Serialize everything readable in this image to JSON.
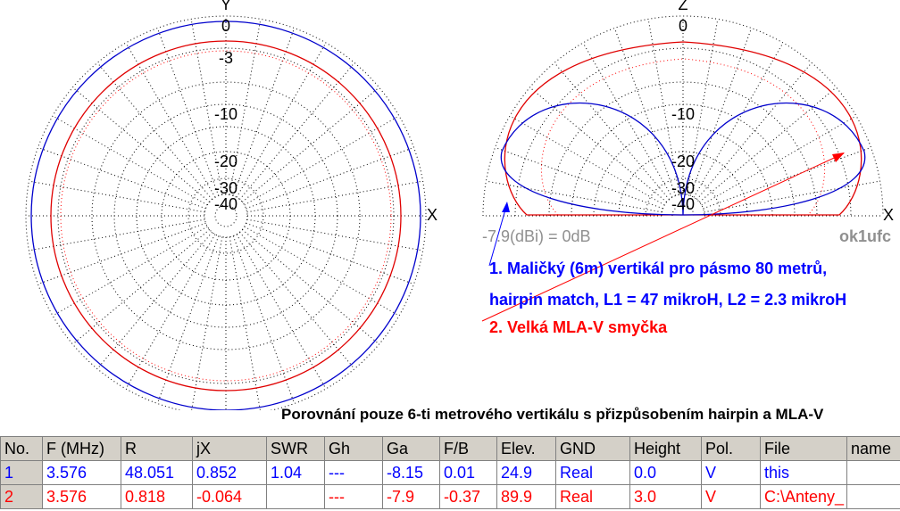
{
  "left_plot": {
    "axis_top": "Y",
    "axis_right": "X",
    "rings": [
      "0",
      "-3",
      "-10",
      "-20",
      "-30",
      "-40"
    ]
  },
  "right_plot": {
    "axis_top": "Z",
    "axis_right": "X",
    "rings": [
      "0",
      "-10",
      "-20",
      "-30",
      "-40"
    ],
    "scale_note": "-7.9(dBi) = 0dB",
    "author": "ok1ufc"
  },
  "annotations": [
    "1. Maličký (6m) vertikál pro pásmo 80 metrů,",
    "hairpin match, L1 = 47 mikroH, L2 = 2.3 mikroH",
    "2. Velká MLA-V smyčka"
  ],
  "title": "Porovnání pouze 6-ti metrového vertikálu s přizpůsobením hairpin a MLA-V",
  "table": {
    "header": [
      "No.",
      "F (MHz)",
      "R",
      "jX",
      "SWR",
      "Gh",
      "Ga",
      "F/B",
      "Elev.",
      "GND",
      "Height",
      "Pol.",
      "File",
      "name"
    ],
    "rows": [
      [
        "1",
        "3.576",
        "48.051",
        "0.852",
        "1.04",
        "---",
        "-8.15",
        "0.01",
        "24.9",
        "Real",
        "0.0",
        "V",
        "this",
        ""
      ],
      [
        "2",
        "3.576",
        "0.818",
        "-0.064",
        "",
        "---",
        "-7.9",
        "-0.37",
        "89.9",
        "Real",
        "3.0",
        "V",
        "C:\\Anteny_",
        ""
      ]
    ]
  }
}
